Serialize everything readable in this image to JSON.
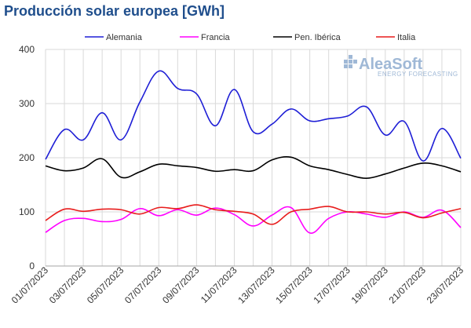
{
  "chart_data": {
    "type": "line",
    "title": "Producción solar europea [GWh]",
    "xlabel": "",
    "ylabel": "",
    "ylim": [
      0,
      400
    ],
    "yticks": [
      0,
      100,
      200,
      300,
      400
    ],
    "grid": true,
    "legend_position": "top",
    "x": [
      "01/07/2023",
      "02/07/2023",
      "03/07/2023",
      "04/07/2023",
      "05/07/2023",
      "06/07/2023",
      "07/07/2023",
      "08/07/2023",
      "09/07/2023",
      "10/07/2023",
      "11/07/2023",
      "12/07/2023",
      "13/07/2023",
      "14/07/2023",
      "15/07/2023",
      "16/07/2023",
      "17/07/2023",
      "18/07/2023",
      "19/07/2023",
      "20/07/2023",
      "21/07/2023",
      "22/07/2023",
      "23/07/2023"
    ],
    "xtick_labels": [
      "01/07/2023",
      "03/07/2023",
      "05/07/2023",
      "07/07/2023",
      "09/07/2023",
      "11/07/2023",
      "13/07/2023",
      "15/07/2023",
      "17/07/2023",
      "19/07/2023",
      "21/07/2023",
      "23/07/2023"
    ],
    "series": [
      {
        "name": "Alemania",
        "color": "#1f1fd6",
        "values": [
          197,
          252,
          233,
          283,
          233,
          303,
          360,
          328,
          318,
          259,
          326,
          248,
          262,
          290,
          268,
          272,
          277,
          294,
          242,
          267,
          194,
          254,
          199
        ]
      },
      {
        "name": "Francia",
        "color": "#ff00ff",
        "values": [
          62,
          84,
          88,
          82,
          86,
          106,
          93,
          104,
          94,
          107,
          95,
          74,
          94,
          108,
          61,
          88,
          100,
          96,
          90,
          100,
          90,
          103,
          71
        ]
      },
      {
        "name": "Pen. Ibérica",
        "color": "#000000",
        "values": [
          185,
          176,
          181,
          198,
          164,
          174,
          188,
          185,
          182,
          175,
          178,
          176,
          196,
          201,
          185,
          178,
          169,
          162,
          170,
          181,
          190,
          185,
          174
        ]
      },
      {
        "name": "Italia",
        "color": "#e81c1c",
        "values": [
          84,
          105,
          101,
          105,
          104,
          96,
          108,
          106,
          113,
          104,
          101,
          96,
          77,
          100,
          105,
          110,
          100,
          100,
          96,
          99,
          89,
          98,
          106
        ]
      }
    ]
  },
  "logo": {
    "name": "AleaSoft",
    "tagline": "ENERGY FORECASTING"
  }
}
